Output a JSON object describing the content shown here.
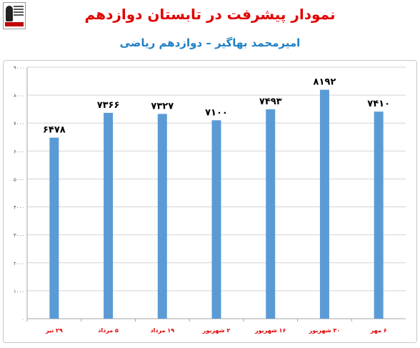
{
  "header": {
    "title": "نمودار پیشرفت در تابستان دوازدهم",
    "subtitle": "امیرمحمد بهاگیر – دوازدهم ریاضی"
  },
  "colors": {
    "bar": "#5b9bd5",
    "title": "#e00000",
    "subtitle": "#1f7fc4",
    "xlabel": "#e00000"
  },
  "chart_data": {
    "type": "bar",
    "categories": [
      "۲۹ تیر",
      "۵ مرداد",
      "۱۹ مرداد",
      "۲ شهریور",
      "۱۶ شهریور",
      "۳۰ شهریور",
      "۶ مهر"
    ],
    "values": [
      6478,
      7366,
      7327,
      7100,
      7493,
      8192,
      7410
    ],
    "data_labels": [
      "۶۴۷۸",
      "۷۳۶۶",
      "۷۳۲۷",
      "۷۱۰۰",
      "۷۴۹۳",
      "۸۱۹۲",
      "۷۴۱۰"
    ],
    "ylim": [
      0,
      9000
    ],
    "yticks": [
      0,
      1000,
      2000,
      3000,
      4000,
      5000,
      6000,
      7000,
      8000,
      9000
    ],
    "ytick_labels": [
      "۰",
      "۱۰۰۰",
      "۲۰۰۰",
      "۳۰۰۰",
      "۴۰۰۰",
      "۵۰۰۰",
      "۶۰۰۰",
      "۷۰۰۰",
      "۸۰۰۰",
      "۹۰۰۰"
    ],
    "grid": true,
    "xlabel": "",
    "ylabel": ""
  }
}
